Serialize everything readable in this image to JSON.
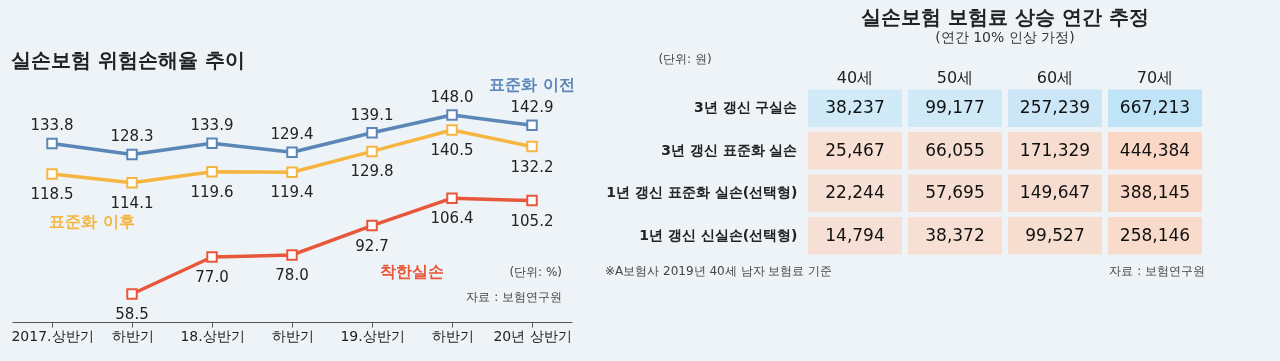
{
  "chart_data": [
    {
      "type": "line",
      "title": "실손보험 위험손해율 추이",
      "categories": [
        "2017.상반기",
        "하반기",
        "18.상반기",
        "하반기",
        "19.상반기",
        "하반기",
        "20년 상반기"
      ],
      "series": [
        {
          "name": "표준화 이전",
          "color": "#5b86b8",
          "values": [
            133.8,
            128.3,
            133.9,
            129.4,
            139.1,
            148.0,
            142.9
          ],
          "value_labels": [
            "133.8",
            "128.3",
            "133.9",
            "129.4",
            "139.1",
            "148.0",
            "142.9"
          ]
        },
        {
          "name": "표준화 이후",
          "color": "#f5b540",
          "values": [
            118.5,
            114.1,
            119.6,
            119.4,
            129.8,
            140.5,
            132.2
          ],
          "value_labels": [
            "118.5",
            "114.1",
            "119.6",
            "119.4",
            "129.8",
            "140.5",
            "132.2"
          ]
        },
        {
          "name": "착한실손",
          "color": "#e8573a",
          "values": [
            null,
            58.5,
            77.0,
            78.0,
            92.7,
            106.4,
            105.2
          ],
          "value_labels": [
            null,
            "58.5",
            "77.0",
            "78.0",
            "92.7",
            "106.4",
            "105.2"
          ]
        }
      ],
      "marker": "square",
      "tick_labels": "x",
      "legend": false,
      "annotations": [
        "(단위: %)",
        "자료 : 보험연구원"
      ]
    },
    {
      "type": "heatmap",
      "title": "실손보험 보험료 상승 연간 추정",
      "subtitle": "(연간 10% 인상 가정)",
      "categories": [
        "40세",
        "50세",
        "60세",
        "70세"
      ],
      "y_categories": [
        "3년 갱신 구실손",
        "3년 갱신 표준화 실손",
        "1년 갱신 표준화 실손(선택형)",
        "1년 갱신 신실손(선택형)"
      ],
      "cells": [
        [
          38237,
          99177,
          257239,
          667213
        ],
        [
          25467,
          66055,
          171329,
          444384
        ],
        [
          22244,
          57695,
          149647,
          388145
        ],
        [
          14794,
          38372,
          99527,
          258146
        ]
      ],
      "cell_labels": [
        [
          "38,237",
          "99,177",
          "257,239",
          "667,213"
        ],
        [
          "25,467",
          "66,055",
          "171,329",
          "444,384"
        ],
        [
          "22,244",
          "57,695",
          "149,647",
          "388,145"
        ],
        [
          "14,794",
          "38,372",
          "99,527",
          "258,146"
        ]
      ],
      "colors": [
        "#bfe3f7",
        "#fbd3bd",
        "#fbd3bd",
        "#fbd3bd"
      ],
      "annotations": [
        "(단위: 원)",
        "※A보험사 2019년 40세 남자 보험료 기준",
        "자료 : 보험연구원"
      ]
    }
  ]
}
